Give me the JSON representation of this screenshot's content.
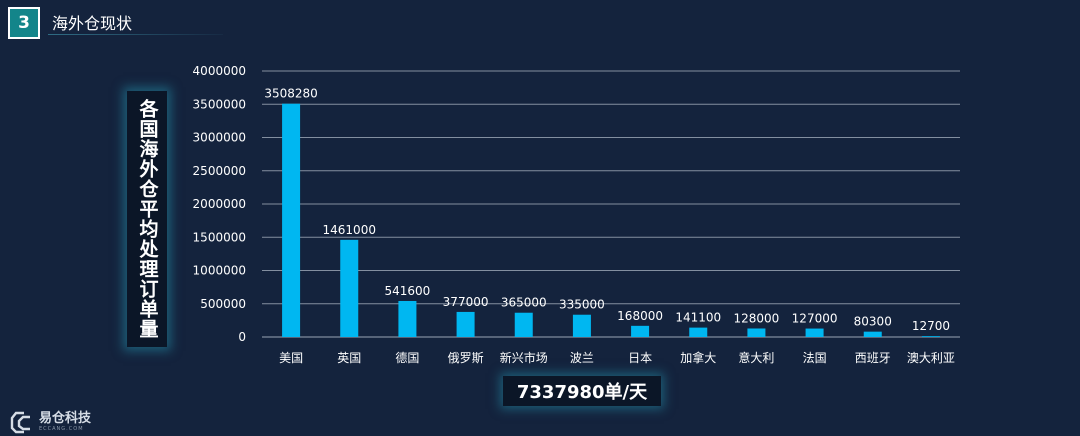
{
  "slide": {
    "number": "3",
    "title": "海外仓现状"
  },
  "logo": {
    "text": "易仓科技",
    "subtext": "ECCANG.COM",
    "icon": "eccang-logo-icon"
  },
  "total_label": "7337980单/天",
  "chart_data": {
    "type": "bar",
    "ylabel": "各国海外仓平均处理订单量",
    "xlabel": "",
    "ylim": [
      0,
      4000000
    ],
    "yticks": [
      "0",
      "500000",
      "1000000",
      "1500000",
      "2000000",
      "2500000",
      "3000000",
      "3500000",
      "4000000"
    ],
    "grid": true,
    "categories": [
      "美国",
      "英国",
      "德国",
      "俄罗斯",
      "新兴市场",
      "波兰",
      "日本",
      "加拿大",
      "意大利",
      "法国",
      "西班牙",
      "澳大利亚"
    ],
    "values": [
      3508280,
      1461000,
      541600,
      377000,
      365000,
      335000,
      168000,
      141100,
      128000,
      127000,
      80300,
      12700
    ],
    "data_labels": [
      "3508280",
      "1461000",
      "541600",
      "377000",
      "365000",
      "335000",
      "168000",
      "141100",
      "128000",
      "127000",
      "80300",
      "12700"
    ],
    "colors": {
      "bar": "#00b7f1",
      "grid": "#a9b4c2",
      "tick_text": "#ffffff"
    }
  }
}
